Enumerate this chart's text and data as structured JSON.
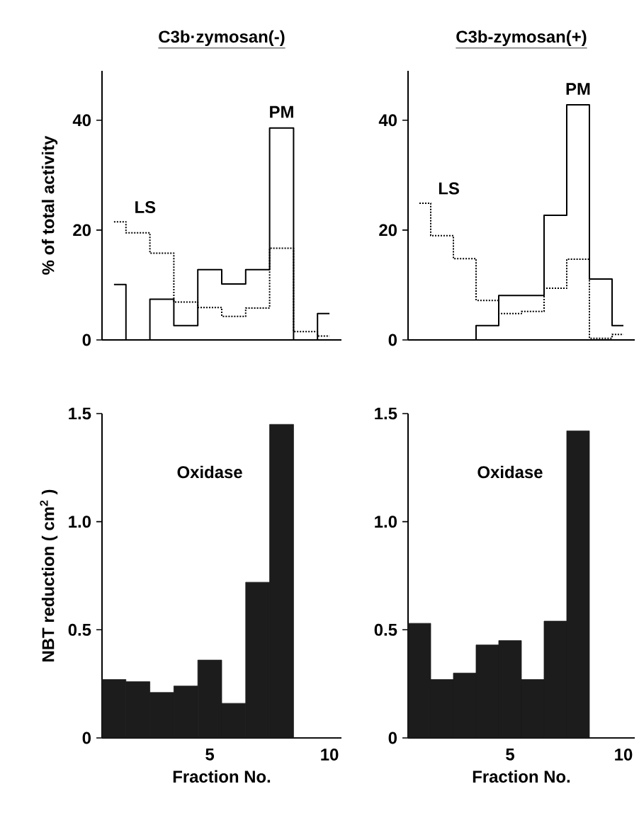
{
  "chart_data": [
    {
      "type": "step",
      "title": "C3b·zymosan(-)",
      "ylabel": "% of total activity",
      "x": [
        1,
        2,
        3,
        4,
        5,
        6,
        7,
        8,
        9,
        10
      ],
      "xlim": [
        0.5,
        10.5
      ],
      "ylim": [
        0,
        49
      ],
      "yticks": [
        0,
        20,
        40
      ],
      "tick_labels": "y",
      "series": [
        {
          "name": "PM",
          "color": "#000000",
          "line_style": "solid",
          "values": [
            10.1,
            0,
            7.4,
            2.6,
            12.8,
            10.2,
            12.8,
            38.6,
            0,
            4.8
          ]
        },
        {
          "name": "LS",
          "color": "#000000",
          "line_style": "dotted",
          "values": [
            21.5,
            19.5,
            15.8,
            6.9,
            5.9,
            4.3,
            5.8,
            16.7,
            1.5,
            0.7
          ]
        }
      ]
    },
    {
      "type": "step",
      "title": "C3b-zymosan(+)",
      "x": [
        1,
        2,
        3,
        4,
        5,
        6,
        7,
        8,
        9,
        10
      ],
      "xlim": [
        0.5,
        10.5
      ],
      "ylim": [
        0,
        49
      ],
      "yticks": [
        0,
        20,
        40
      ],
      "tick_labels": "y",
      "series": [
        {
          "name": "PM",
          "color": "#000000",
          "line_style": "solid",
          "values": [
            0,
            0,
            0,
            2.6,
            8.1,
            8.1,
            22.7,
            42.8,
            11.1,
            2.6
          ]
        },
        {
          "name": "LS",
          "color": "#000000",
          "line_style": "dotted",
          "values": [
            24.9,
            19.0,
            14.8,
            7.2,
            4.8,
            5.2,
            9.4,
            14.7,
            0.3,
            1.0
          ]
        }
      ]
    },
    {
      "type": "bar",
      "xlabel": "Fraction No.",
      "ylabel": "NBT reduction ( cm$^{2}$ )",
      "annotations": [
        "Oxidase"
      ],
      "x": [
        1,
        2,
        3,
        4,
        5,
        6,
        7,
        8,
        9,
        10
      ],
      "xlim": [
        0.5,
        10.5
      ],
      "xticks": [
        5,
        10
      ],
      "ylim": [
        0,
        1.5
      ],
      "yticks": [
        0,
        0.5,
        {
          "value": 1,
          "label": "1.0"
        },
        1.5
      ],
      "color": "#1c1c1c",
      "values": [
        0.27,
        0.26,
        0.21,
        0.24,
        0.36,
        0.16,
        0.72,
        1.45,
        0,
        0
      ]
    },
    {
      "type": "bar",
      "xlabel": "Fraction No.",
      "annotations": [
        "Oxidase"
      ],
      "x": [
        1,
        2,
        3,
        4,
        5,
        6,
        7,
        8,
        9,
        10
      ],
      "xlim": [
        0.5,
        10.5
      ],
      "xticks": [
        5,
        10
      ],
      "ylim": [
        0,
        1.5
      ],
      "yticks": [
        0,
        0.5,
        {
          "value": 1,
          "label": "1.0"
        },
        1.5
      ],
      "color": "#1c1c1c",
      "values": [
        0.53,
        0.27,
        0.3,
        0.43,
        0.45,
        0.27,
        0.54,
        1.42,
        0,
        0
      ]
    }
  ]
}
